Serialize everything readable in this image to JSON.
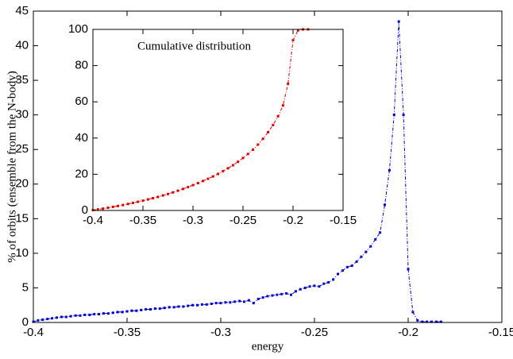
{
  "chart_data": [
    {
      "type": "line",
      "x_label": "energy",
      "y_label": "% of orbits (ensemble from the N-body)",
      "color": "#0000cc",
      "x": [
        -0.4,
        -0.3975,
        -0.395,
        -0.3925,
        -0.39,
        -0.3875,
        -0.385,
        -0.3825,
        -0.38,
        -0.3775,
        -0.375,
        -0.3725,
        -0.37,
        -0.3675,
        -0.365,
        -0.3625,
        -0.36,
        -0.3575,
        -0.355,
        -0.3525,
        -0.35,
        -0.3475,
        -0.345,
        -0.3425,
        -0.34,
        -0.3375,
        -0.335,
        -0.3325,
        -0.33,
        -0.3275,
        -0.325,
        -0.3225,
        -0.32,
        -0.3175,
        -0.315,
        -0.3125,
        -0.31,
        -0.3075,
        -0.305,
        -0.3025,
        -0.3,
        -0.2975,
        -0.295,
        -0.2925,
        -0.29,
        -0.2875,
        -0.285,
        -0.2825,
        -0.28,
        -0.2775,
        -0.275,
        -0.2725,
        -0.27,
        -0.2675,
        -0.265,
        -0.2625,
        -0.26,
        -0.2575,
        -0.255,
        -0.2525,
        -0.25,
        -0.2475,
        -0.245,
        -0.2425,
        -0.24,
        -0.2375,
        -0.235,
        -0.2325,
        -0.23,
        -0.2275,
        -0.225,
        -0.2225,
        -0.22,
        -0.2175,
        -0.215,
        -0.2125,
        -0.21,
        -0.2075,
        -0.205,
        -0.2025,
        -0.2,
        -0.1975,
        -0.195,
        -0.1925,
        -0.19,
        -0.1875,
        -0.185,
        -0.1825
      ],
      "values": [
        0.1,
        0.3,
        0.4,
        0.5,
        0.6,
        0.7,
        0.8,
        0.8,
        0.9,
        1.0,
        1.0,
        1.1,
        1.1,
        1.2,
        1.2,
        1.3,
        1.3,
        1.4,
        1.5,
        1.5,
        1.6,
        1.7,
        1.7,
        1.8,
        1.9,
        1.9,
        2.0,
        2.0,
        2.1,
        2.2,
        2.2,
        2.3,
        2.3,
        2.4,
        2.5,
        2.5,
        2.6,
        2.6,
        2.7,
        2.8,
        2.8,
        2.9,
        2.9,
        3.0,
        3.1,
        3.0,
        3.2,
        2.8,
        3.4,
        3.6,
        3.8,
        3.9,
        4.0,
        4.1,
        4.2,
        4.0,
        4.5,
        4.8,
        5.0,
        5.2,
        5.3,
        5.2,
        5.6,
        5.8,
        6.2,
        7.0,
        7.5,
        8.0,
        8.2,
        8.8,
        9.5,
        10.2,
        11,
        12,
        13,
        17,
        22,
        30,
        43.5,
        30,
        7.7,
        1.5,
        0.3,
        0.1,
        0.1,
        0.1,
        0.1,
        0.1
      ],
      "xlim": [
        -0.4,
        -0.15
      ],
      "xticks": [
        -0.4,
        -0.35,
        -0.3,
        -0.25,
        -0.2,
        -0.15
      ],
      "ylim": [
        0,
        45
      ],
      "yticks": [
        0,
        5,
        10,
        15,
        20,
        25,
        30,
        35,
        40,
        45
      ]
    },
    {
      "type": "line",
      "title": "Cumulative distribution",
      "color": "#dd0000",
      "x": [
        -0.4,
        -0.395,
        -0.39,
        -0.385,
        -0.38,
        -0.375,
        -0.37,
        -0.365,
        -0.36,
        -0.355,
        -0.35,
        -0.345,
        -0.34,
        -0.335,
        -0.33,
        -0.325,
        -0.32,
        -0.315,
        -0.31,
        -0.305,
        -0.3,
        -0.295,
        -0.29,
        -0.285,
        -0.28,
        -0.275,
        -0.27,
        -0.265,
        -0.26,
        -0.255,
        -0.25,
        -0.245,
        -0.24,
        -0.235,
        -0.23,
        -0.225,
        -0.22,
        -0.215,
        -0.21,
        -0.205,
        -0.2,
        -0.195,
        -0.19,
        -0.185
      ],
      "values": [
        0.2,
        0.6,
        1.0,
        1.5,
        2.0,
        2.5,
        3.0,
        3.6,
        4.2,
        4.8,
        5.4,
        6.1,
        6.8,
        7.5,
        8.3,
        9.1,
        10.0,
        10.9,
        11.9,
        12.9,
        14.0,
        15.1,
        16.3,
        17.5,
        18.8,
        20.2,
        21.7,
        23.3,
        25.0,
        26.9,
        29.0,
        31.2,
        33.6,
        36.4,
        39.6,
        43.2,
        47.2,
        52,
        58,
        70,
        94,
        99.5,
        100,
        100
      ],
      "xlim": [
        -0.4,
        -0.15
      ],
      "xticks": [
        -0.4,
        -0.35,
        -0.3,
        -0.25,
        -0.2,
        -0.15
      ],
      "ylim": [
        0,
        100
      ],
      "yticks": [
        0,
        20,
        40,
        60,
        80,
        100
      ]
    }
  ]
}
